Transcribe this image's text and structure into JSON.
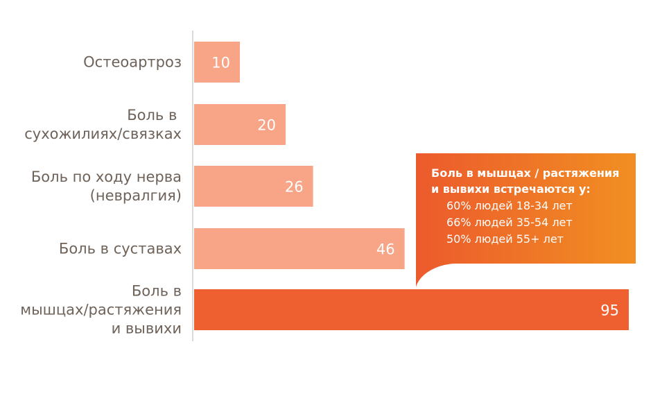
{
  "chart_data": {
    "type": "bar",
    "orientation": "horizontal",
    "categories": [
      [
        "Остеоартроз"
      ],
      [
        "Боль в ",
        "сухожилиях/связках"
      ],
      [
        "Боль по ходу нерва",
        "(невралгия)"
      ],
      [
        "Боль в суставах"
      ],
      [
        "Боль в",
        "мышцах/растяжения",
        "и вывихи"
      ]
    ],
    "values": [
      10,
      20,
      26,
      46,
      95
    ],
    "value_labels": [
      "10",
      "20",
      "26",
      "46",
      "95"
    ],
    "xlim": [
      0,
      100
    ],
    "grid": false,
    "colors": {
      "bar": "#f7a487",
      "highlight": "#ef6030",
      "axis": "#d9d9d9",
      "callout_start": "#ec5a2c",
      "callout_end": "#f18f22"
    },
    "highlight_index": 4,
    "callout": {
      "heading": [
        "Боль в мышцах / растяжения",
        "и вывихи встречаются у:"
      ],
      "lines": [
        "60% людей 18-34 лет",
        "66% людей 35-54 лет",
        "50% людей 55+ лет"
      ]
    }
  }
}
